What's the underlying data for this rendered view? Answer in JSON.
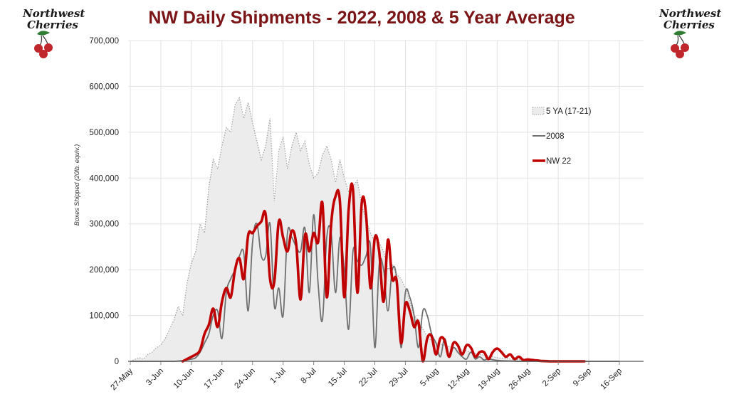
{
  "brand": {
    "logo_text_line1": "Northwest",
    "logo_text_line2": "Cherries",
    "cherry_color": "#c0272d",
    "leaf_color": "#2e7d32"
  },
  "chart_data": {
    "type": "area",
    "title": "NW Daily Shipments - 2022, 2008 & 5 Year Average",
    "ylabel": "Boxes Shipped (20lb. equiv.)",
    "xlabel": "",
    "ylim": [
      0,
      700000
    ],
    "yticks": [
      0,
      100000,
      200000,
      300000,
      400000,
      500000,
      600000,
      700000
    ],
    "ytick_labels": [
      "0",
      "100,000",
      "200,000",
      "300,000",
      "400,000",
      "500,000",
      "600,000",
      "700,000"
    ],
    "x_tick_labels": [
      "27-May",
      "3-Jun",
      "10-Jun",
      "17-Jun",
      "24-Jun",
      "1-Jul",
      "8-Jul",
      "15-Jul",
      "22-Jul",
      "29-Jul",
      "5-Aug",
      "12-Aug",
      "19-Aug",
      "26-Aug",
      "2-Sep",
      "9-Sep",
      "16-Sep"
    ],
    "x_range_days": [
      0,
      112
    ],
    "grid": true,
    "legend_position": "right",
    "series": [
      {
        "name": "5 YA (17-21)",
        "style": "area-dotted",
        "color": "#a6a6a6",
        "fill": "#ececec",
        "x": [
          0,
          2,
          3,
          4,
          5,
          6,
          7,
          8,
          9,
          10,
          11,
          12,
          13,
          14,
          15,
          16,
          17,
          18,
          19,
          20,
          21,
          22,
          23,
          24,
          25,
          26,
          27,
          28,
          29,
          30,
          31,
          32,
          33,
          34,
          35,
          36,
          37,
          38,
          39,
          40,
          41,
          42,
          43,
          44,
          45,
          46,
          47,
          48,
          49,
          50,
          51,
          52,
          53,
          54,
          55,
          56,
          57,
          58,
          59,
          60,
          61,
          62,
          63,
          64,
          65,
          66,
          67,
          68,
          69,
          70,
          72,
          74,
          76,
          78,
          80,
          82,
          84,
          86,
          88,
          90,
          92,
          94,
          96,
          98,
          100,
          102,
          104,
          106,
          108,
          110,
          112
        ],
        "values": [
          0,
          8000,
          5000,
          15000,
          20000,
          30000,
          35000,
          50000,
          70000,
          90000,
          120000,
          100000,
          170000,
          215000,
          240000,
          300000,
          280000,
          380000,
          440000,
          420000,
          470000,
          510000,
          500000,
          560000,
          575000,
          530000,
          565000,
          520000,
          480000,
          440000,
          470000,
          530000,
          350000,
          460000,
          490000,
          420000,
          470000,
          500000,
          460000,
          480000,
          430000,
          400000,
          410000,
          450000,
          470000,
          440000,
          390000,
          440000,
          400000,
          370000,
          380000,
          395000,
          340000,
          310000,
          280000,
          260000,
          260000,
          240000,
          200000,
          210000,
          190000,
          180000,
          160000,
          130000,
          100000,
          90000,
          70000,
          55000,
          45000,
          40000,
          35000,
          30000,
          25000,
          20000,
          15000,
          12000,
          8000,
          6000,
          4000,
          3000,
          2000,
          1500,
          1000,
          500,
          0,
          0,
          0,
          0,
          0,
          0,
          0
        ]
      },
      {
        "name": "2008",
        "style": "line",
        "color": "#707070",
        "x": [
          0,
          10,
          14,
          15,
          16,
          17,
          18,
          19,
          20,
          21,
          22,
          23,
          24,
          25,
          26,
          27,
          28,
          29,
          30,
          31,
          32,
          33,
          34,
          35,
          36,
          37,
          38,
          39,
          40,
          41,
          42,
          43,
          44,
          45,
          46,
          47,
          48,
          49,
          50,
          51,
          52,
          53,
          54,
          55,
          56,
          57,
          58,
          59,
          60,
          61,
          62,
          63,
          64,
          65,
          66,
          67,
          68,
          69,
          70,
          71,
          72,
          73,
          74,
          75,
          76,
          77,
          78,
          79,
          80,
          81,
          82,
          84,
          86,
          88,
          90,
          100,
          112
        ],
        "values": [
          0,
          0,
          5000,
          8000,
          20000,
          40000,
          60000,
          100000,
          110000,
          50000,
          150000,
          180000,
          200000,
          230000,
          235000,
          110000,
          260000,
          300000,
          230000,
          230000,
          300000,
          120000,
          160000,
          100000,
          280000,
          270000,
          250000,
          240000,
          290000,
          150000,
          320000,
          170000,
          90000,
          270000,
          280000,
          150000,
          270000,
          200000,
          70000,
          240000,
          220000,
          210000,
          230000,
          250000,
          30000,
          210000,
          200000,
          110000,
          200000,
          180000,
          30000,
          150000,
          140000,
          100000,
          30000,
          110000,
          100000,
          60000,
          40000,
          10000,
          50000,
          10000,
          30000,
          20000,
          10000,
          5000,
          20000,
          5000,
          10000,
          3000,
          5000,
          2000,
          1000,
          500,
          0,
          0,
          0
        ]
      },
      {
        "name": "NW 22",
        "style": "line-bold",
        "color": "#c00000",
        "x": [
          12,
          14,
          15,
          16,
          17,
          18,
          19,
          20,
          21,
          22,
          23,
          24,
          25,
          26,
          27,
          28,
          29,
          30,
          31,
          32,
          33,
          34,
          35,
          36,
          37,
          38,
          39,
          40,
          41,
          42,
          43,
          44,
          45,
          46,
          47,
          48,
          49,
          50,
          51,
          52,
          53,
          54,
          55,
          56,
          57,
          58,
          59,
          60,
          61,
          62,
          63,
          64,
          65,
          66,
          67,
          68,
          69,
          70,
          71,
          72,
          73,
          74,
          75,
          76,
          77,
          78,
          79,
          80,
          81,
          82,
          83,
          84,
          85,
          86,
          87,
          88,
          89,
          90,
          91,
          92,
          93,
          94,
          95,
          96,
          97,
          98,
          99,
          100,
          102,
          104
        ],
        "values": [
          0,
          10000,
          15000,
          25000,
          60000,
          80000,
          115000,
          75000,
          130000,
          160000,
          140000,
          200000,
          225000,
          180000,
          275000,
          280000,
          295000,
          305000,
          320000,
          180000,
          175000,
          305000,
          270000,
          240000,
          285000,
          255000,
          135000,
          275000,
          240000,
          280000,
          260000,
          345000,
          140000,
          300000,
          360000,
          350000,
          140000,
          330000,
          375000,
          150000,
          345000,
          320000,
          160000,
          270000,
          240000,
          130000,
          265000,
          180000,
          175000,
          40000,
          125000,
          110000,
          75000,
          85000,
          0,
          50000,
          55000,
          15000,
          50000,
          45000,
          10000,
          40000,
          35000,
          15000,
          35000,
          30000,
          10000,
          20000,
          20000,
          5000,
          20000,
          28000,
          20000,
          10000,
          15000,
          5000,
          10000,
          3000,
          4000,
          3000,
          2000,
          1000,
          500,
          0,
          0,
          0,
          0,
          0,
          0,
          0
        ]
      }
    ]
  }
}
